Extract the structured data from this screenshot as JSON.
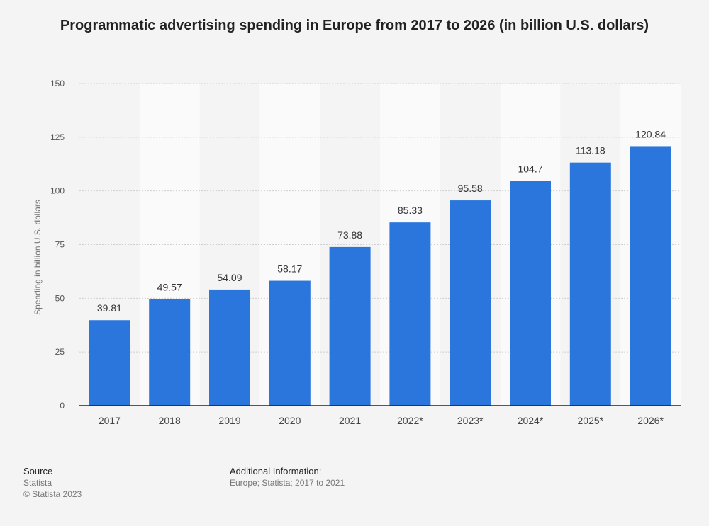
{
  "chart_data": {
    "type": "bar",
    "title": "Programmatic advertising spending in Europe from 2017 to 2026 (in billion U.S. dollars)",
    "xlabel": "",
    "ylabel": "Spending in billion U.S. dollars",
    "categories": [
      "2017",
      "2018",
      "2019",
      "2020",
      "2021",
      "2022*",
      "2023*",
      "2024*",
      "2025*",
      "2026*"
    ],
    "values": [
      39.81,
      49.57,
      54.09,
      58.17,
      73.88,
      85.33,
      95.58,
      104.7,
      113.18,
      120.84
    ],
    "value_labels": [
      "39.81",
      "49.57",
      "54.09",
      "58.17",
      "73.88",
      "85.33",
      "95.58",
      "104.7",
      "113.18",
      "120.84"
    ],
    "ylim": [
      0,
      150
    ],
    "yticks": [
      0,
      25,
      50,
      75,
      100,
      125,
      150
    ],
    "grid": true,
    "legend": "none",
    "bar_color": "#2a76dd"
  },
  "footer": {
    "source_heading": "Source",
    "source_lines": [
      "Statista",
      "© Statista 2023"
    ],
    "info_heading": "Additional Information:",
    "info_text": "Europe; Statista; 2017 to 2021"
  }
}
